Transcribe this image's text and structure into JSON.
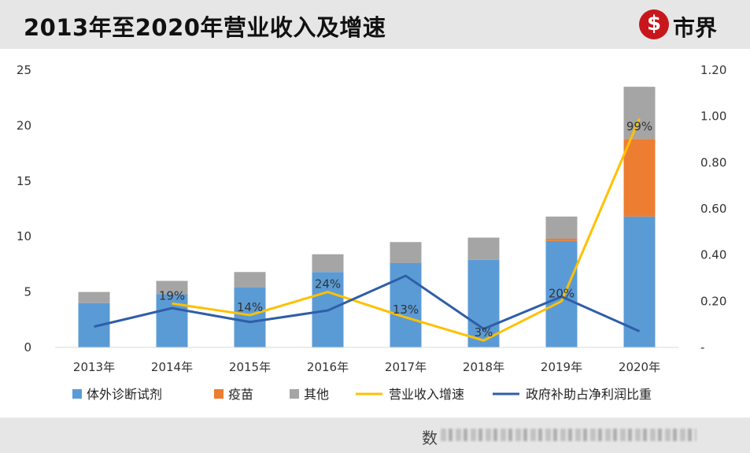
{
  "header": {
    "title": "2013年至2020年营业收入及增速",
    "logo_mark": "$",
    "logo_text": "市界"
  },
  "footer": {
    "source_prefix": "数"
  },
  "colors": {
    "diag": "#5b9bd5",
    "vaccine": "#ed7d31",
    "other": "#a5a5a5",
    "growth": "#ffc000",
    "subsidy": "#2e5ea8"
  },
  "chart_data": {
    "type": "bar",
    "stacked": true,
    "categories": [
      "2013年",
      "2014年",
      "2015年",
      "2016年",
      "2017年",
      "2018年",
      "2019年",
      "2020年"
    ],
    "ylim": [
      0,
      25
    ],
    "yticks": [
      "0",
      "5",
      "10",
      "15",
      "20",
      "25"
    ],
    "y2lim": [
      0,
      1.2
    ],
    "y2ticks": [
      "-",
      "0.20",
      "0.40",
      "0.60",
      "0.80",
      "1.00",
      "1.20"
    ],
    "series": [
      {
        "name": "体外诊断试剂",
        "kind": "bar",
        "axis": "left",
        "values": [
          4.0,
          4.8,
          5.4,
          6.8,
          7.6,
          7.9,
          9.6,
          11.8
        ]
      },
      {
        "name": "疫苗",
        "kind": "bar",
        "axis": "left",
        "values": [
          0.0,
          0.0,
          0.0,
          0.0,
          0.0,
          0.0,
          0.2,
          7.0
        ]
      },
      {
        "name": "其他",
        "kind": "bar",
        "axis": "left",
        "values": [
          1.0,
          1.2,
          1.4,
          1.6,
          1.9,
          2.0,
          2.0,
          4.7
        ]
      },
      {
        "name": "营业收入增速",
        "kind": "line",
        "axis": "right",
        "values": [
          null,
          0.19,
          0.14,
          0.24,
          0.13,
          0.03,
          0.2,
          0.99
        ],
        "labels": [
          "",
          "19%",
          "14%",
          "24%",
          "13%",
          "3%",
          "20%",
          "99%"
        ]
      },
      {
        "name": "政府补助占净利润比重",
        "kind": "line",
        "axis": "right",
        "values": [
          0.09,
          0.17,
          0.11,
          0.16,
          0.31,
          0.08,
          0.22,
          0.07
        ]
      }
    ]
  }
}
